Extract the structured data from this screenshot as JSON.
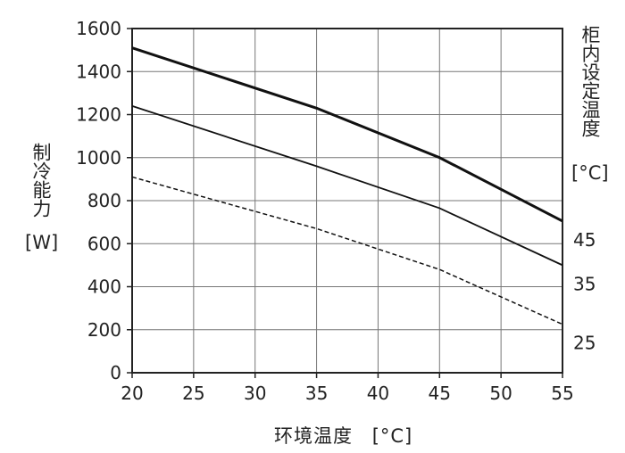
{
  "chart_data": {
    "type": "line",
    "xlabel": "环境温度",
    "xunit": "[°C]",
    "ylabel": "制冷能力",
    "yunit": "[W]",
    "legend_title": "柜内设定温度",
    "legend_unit": "[°C]",
    "xlim": [
      20,
      55
    ],
    "ylim": [
      0,
      1600
    ],
    "xticks": [
      20,
      25,
      30,
      35,
      40,
      45,
      50,
      55
    ],
    "yticks": [
      0,
      200,
      400,
      600,
      800,
      1000,
      1200,
      1400,
      1600
    ],
    "grid": true,
    "series": [
      {
        "name": "45",
        "style": "thick",
        "x": [
          20,
          35,
          45,
          55
        ],
        "y": [
          1510,
          1230,
          1000,
          705
        ]
      },
      {
        "name": "35",
        "style": "solid",
        "x": [
          20,
          35,
          45,
          55
        ],
        "y": [
          1240,
          960,
          765,
          500
        ]
      },
      {
        "name": "25",
        "style": "dashed",
        "x": [
          20,
          35,
          45,
          55
        ],
        "y": [
          910,
          670,
          480,
          225
        ]
      }
    ]
  }
}
